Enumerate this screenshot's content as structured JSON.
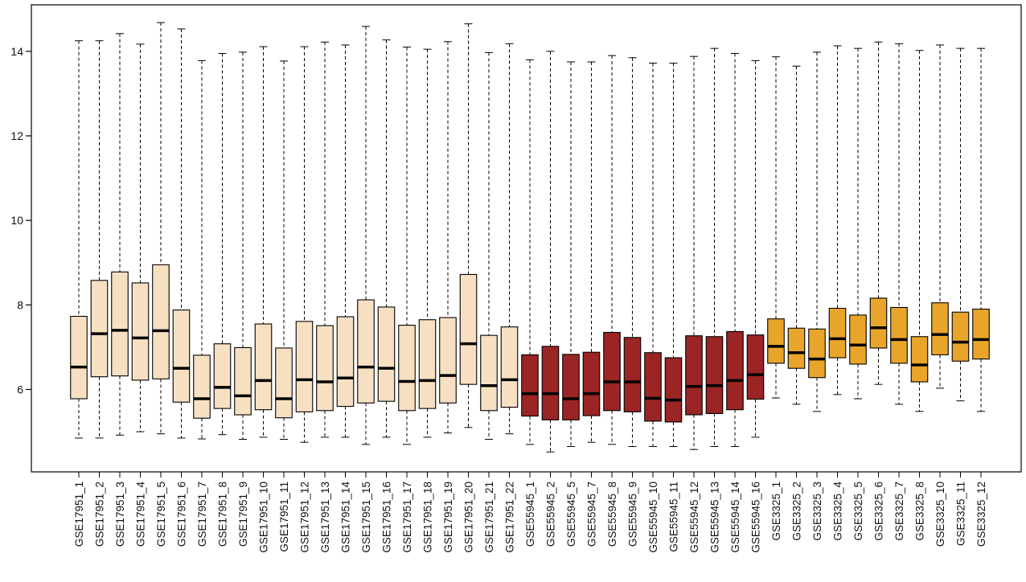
{
  "chart_data": {
    "type": "boxplot",
    "title": "",
    "xlabel": "",
    "ylabel": "",
    "ylim": [
      4.05,
      15.1
    ],
    "yticks": [
      6,
      8,
      10,
      12,
      14
    ],
    "grid": false,
    "legend": "none",
    "colors": {
      "GSE17951": "#F7E0C2",
      "GSE55945": "#9B2424",
      "GSE3325": "#E9A52B"
    },
    "boxes": [
      {
        "label": "GSE17951_1",
        "group": "GSE17951",
        "min": 4.85,
        "q1": 5.78,
        "median": 6.53,
        "q3": 7.73,
        "max": 14.25
      },
      {
        "label": "GSE17951_2",
        "group": "GSE17951",
        "min": 4.85,
        "q1": 6.3,
        "median": 7.32,
        "q3": 8.58,
        "max": 14.25
      },
      {
        "label": "GSE17951_3",
        "group": "GSE17951",
        "min": 4.92,
        "q1": 6.32,
        "median": 7.4,
        "q3": 8.78,
        "max": 14.42
      },
      {
        "label": "GSE17951_4",
        "group": "GSE17951",
        "min": 5.0,
        "q1": 6.22,
        "median": 7.22,
        "q3": 8.52,
        "max": 14.17
      },
      {
        "label": "GSE17951_5",
        "group": "GSE17951",
        "min": 4.95,
        "q1": 6.25,
        "median": 7.39,
        "q3": 8.95,
        "max": 14.68
      },
      {
        "label": "GSE17951_6",
        "group": "GSE17951",
        "min": 4.85,
        "q1": 5.7,
        "median": 6.5,
        "q3": 7.88,
        "max": 14.53
      },
      {
        "label": "GSE17951_7",
        "group": "GSE17951",
        "min": 4.83,
        "q1": 5.32,
        "median": 5.78,
        "q3": 6.81,
        "max": 13.78
      },
      {
        "label": "GSE17951_8",
        "group": "GSE17951",
        "min": 4.93,
        "q1": 5.55,
        "median": 6.05,
        "q3": 7.08,
        "max": 13.95
      },
      {
        "label": "GSE17951_9",
        "group": "GSE17951",
        "min": 4.82,
        "q1": 5.4,
        "median": 5.85,
        "q3": 6.99,
        "max": 13.98
      },
      {
        "label": "GSE17951_10",
        "group": "GSE17951",
        "min": 4.87,
        "q1": 5.52,
        "median": 6.21,
        "q3": 7.55,
        "max": 14.11
      },
      {
        "label": "GSE17951_11",
        "group": "GSE17951",
        "min": 4.82,
        "q1": 5.33,
        "median": 5.78,
        "q3": 6.98,
        "max": 13.77
      },
      {
        "label": "GSE17951_12",
        "group": "GSE17951",
        "min": 4.75,
        "q1": 5.47,
        "median": 6.23,
        "q3": 7.61,
        "max": 14.11
      },
      {
        "label": "GSE17951_13",
        "group": "GSE17951",
        "min": 4.87,
        "q1": 5.5,
        "median": 6.18,
        "q3": 7.51,
        "max": 14.22
      },
      {
        "label": "GSE17951_14",
        "group": "GSE17951",
        "min": 4.87,
        "q1": 5.6,
        "median": 6.27,
        "q3": 7.72,
        "max": 14.15
      },
      {
        "label": "GSE17951_15",
        "group": "GSE17951",
        "min": 4.7,
        "q1": 5.68,
        "median": 6.53,
        "q3": 8.12,
        "max": 14.59
      },
      {
        "label": "GSE17951_16",
        "group": "GSE17951",
        "min": 4.87,
        "q1": 5.72,
        "median": 6.5,
        "q3": 7.95,
        "max": 14.27
      },
      {
        "label": "GSE17951_17",
        "group": "GSE17951",
        "min": 4.7,
        "q1": 5.5,
        "median": 6.19,
        "q3": 7.52,
        "max": 14.1
      },
      {
        "label": "GSE17951_18",
        "group": "GSE17951",
        "min": 4.87,
        "q1": 5.55,
        "median": 6.21,
        "q3": 7.65,
        "max": 14.05
      },
      {
        "label": "GSE17951_19",
        "group": "GSE17951",
        "min": 4.97,
        "q1": 5.68,
        "median": 6.33,
        "q3": 7.7,
        "max": 14.23
      },
      {
        "label": "GSE17951_20",
        "group": "GSE17951",
        "min": 5.1,
        "q1": 6.12,
        "median": 7.08,
        "q3": 8.72,
        "max": 14.65
      },
      {
        "label": "GSE17951_21",
        "group": "GSE17951",
        "min": 4.82,
        "q1": 5.5,
        "median": 6.09,
        "q3": 7.28,
        "max": 13.97
      },
      {
        "label": "GSE17951_22",
        "group": "GSE17951",
        "min": 4.95,
        "q1": 5.58,
        "median": 6.23,
        "q3": 7.48,
        "max": 14.18
      },
      {
        "label": "GSE55945_1",
        "group": "GSE55945",
        "min": 4.7,
        "q1": 5.37,
        "median": 5.9,
        "q3": 6.82,
        "max": 13.8
      },
      {
        "label": "GSE55945_2",
        "group": "GSE55945",
        "min": 4.52,
        "q1": 5.28,
        "median": 5.9,
        "q3": 7.02,
        "max": 14.0
      },
      {
        "label": "GSE55945_5",
        "group": "GSE55945",
        "min": 4.65,
        "q1": 5.28,
        "median": 5.78,
        "q3": 6.83,
        "max": 13.75
      },
      {
        "label": "GSE55945_7",
        "group": "GSE55945",
        "min": 4.75,
        "q1": 5.38,
        "median": 5.9,
        "q3": 6.88,
        "max": 13.75
      },
      {
        "label": "GSE55945_8",
        "group": "GSE55945",
        "min": 4.7,
        "q1": 5.5,
        "median": 6.18,
        "q3": 7.35,
        "max": 13.9
      },
      {
        "label": "GSE55945_9",
        "group": "GSE55945",
        "min": 4.65,
        "q1": 5.47,
        "median": 6.18,
        "q3": 7.23,
        "max": 13.85
      },
      {
        "label": "GSE55945_10",
        "group": "GSE55945",
        "min": 4.65,
        "q1": 5.25,
        "median": 5.79,
        "q3": 6.87,
        "max": 13.72
      },
      {
        "label": "GSE55945_11",
        "group": "GSE55945",
        "min": 4.65,
        "q1": 5.23,
        "median": 5.75,
        "q3": 6.75,
        "max": 13.72
      },
      {
        "label": "GSE55945_12",
        "group": "GSE55945",
        "min": 4.58,
        "q1": 5.4,
        "median": 6.07,
        "q3": 7.27,
        "max": 13.88
      },
      {
        "label": "GSE55945_13",
        "group": "GSE55945",
        "min": 4.65,
        "q1": 5.43,
        "median": 6.09,
        "q3": 7.25,
        "max": 14.07
      },
      {
        "label": "GSE55945_14",
        "group": "GSE55945",
        "min": 4.65,
        "q1": 5.52,
        "median": 6.21,
        "q3": 7.37,
        "max": 13.95
      },
      {
        "label": "GSE55945_16",
        "group": "GSE55945",
        "min": 4.87,
        "q1": 5.77,
        "median": 6.35,
        "q3": 7.29,
        "max": 13.78
      },
      {
        "label": "GSE3325_1",
        "group": "GSE3325",
        "min": 5.8,
        "q1": 6.62,
        "median": 7.02,
        "q3": 7.67,
        "max": 13.87
      },
      {
        "label": "GSE3325_2",
        "group": "GSE3325",
        "min": 5.65,
        "q1": 6.5,
        "median": 6.87,
        "q3": 7.45,
        "max": 13.65
      },
      {
        "label": "GSE3325_3",
        "group": "GSE3325",
        "min": 5.48,
        "q1": 6.28,
        "median": 6.72,
        "q3": 7.43,
        "max": 13.98
      },
      {
        "label": "GSE3325_4",
        "group": "GSE3325",
        "min": 5.88,
        "q1": 6.75,
        "median": 7.2,
        "q3": 7.92,
        "max": 14.13
      },
      {
        "label": "GSE3325_5",
        "group": "GSE3325",
        "min": 5.78,
        "q1": 6.6,
        "median": 7.05,
        "q3": 7.76,
        "max": 14.07
      },
      {
        "label": "GSE3325_6",
        "group": "GSE3325",
        "min": 6.12,
        "q1": 6.98,
        "median": 7.46,
        "q3": 8.16,
        "max": 14.22
      },
      {
        "label": "GSE3325_7",
        "group": "GSE3325",
        "min": 5.65,
        "q1": 6.62,
        "median": 7.18,
        "q3": 7.94,
        "max": 14.18
      },
      {
        "label": "GSE3325_8",
        "group": "GSE3325",
        "min": 5.48,
        "q1": 6.18,
        "median": 6.58,
        "q3": 7.25,
        "max": 14.02
      },
      {
        "label": "GSE3325_10",
        "group": "GSE3325",
        "min": 6.03,
        "q1": 6.82,
        "median": 7.3,
        "q3": 8.05,
        "max": 14.15
      },
      {
        "label": "GSE3325_11",
        "group": "GSE3325",
        "min": 5.73,
        "q1": 6.67,
        "median": 7.12,
        "q3": 7.83,
        "max": 14.07
      },
      {
        "label": "GSE3325_12",
        "group": "GSE3325",
        "min": 5.48,
        "q1": 6.72,
        "median": 7.18,
        "q3": 7.9,
        "max": 14.07
      }
    ]
  }
}
